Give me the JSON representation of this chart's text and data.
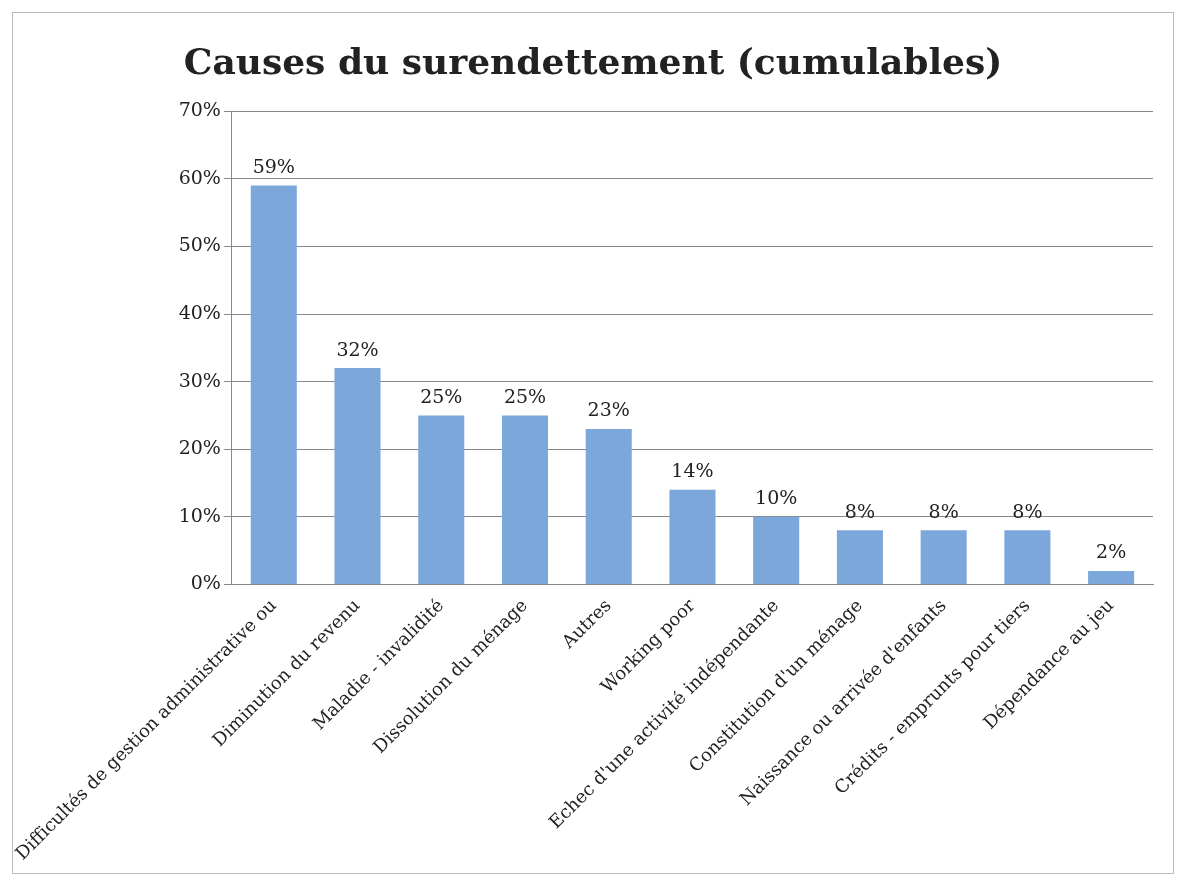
{
  "chart_data": {
    "type": "bar",
    "title": "Causes du surendettement (cumulables)",
    "categories": [
      "Difficultés de gestion administrative ou",
      "Diminution du revenu",
      "Maladie - invalidité",
      "Dissolution du ménage",
      "Autres",
      "Working poor",
      "Echec d'une activité indépendante",
      "Constitution d'un ménage",
      "Naissance ou arrivée d'enfants",
      "Crédits - emprunts pour tiers",
      "Dépendance au jeu"
    ],
    "values": [
      59,
      32,
      25,
      25,
      23,
      14,
      10,
      8,
      8,
      8,
      2
    ],
    "value_labels": [
      "59%",
      "32%",
      "25%",
      "25%",
      "23%",
      "14%",
      "10%",
      "8%",
      "8%",
      "8%",
      "2%"
    ],
    "color": "#7ba7da",
    "ylim": [
      0,
      70
    ],
    "yticks": [
      {
        "value": 0,
        "label": "0%"
      },
      {
        "value": 10,
        "label": "10%"
      },
      {
        "value": 20,
        "label": "20%"
      },
      {
        "value": 30,
        "label": "30%"
      },
      {
        "value": 40,
        "label": "40%"
      },
      {
        "value": 50,
        "label": "50%"
      },
      {
        "value": 60,
        "label": "60%"
      },
      {
        "value": 70,
        "label": "70%"
      }
    ],
    "grid": "y",
    "legend": false
  }
}
